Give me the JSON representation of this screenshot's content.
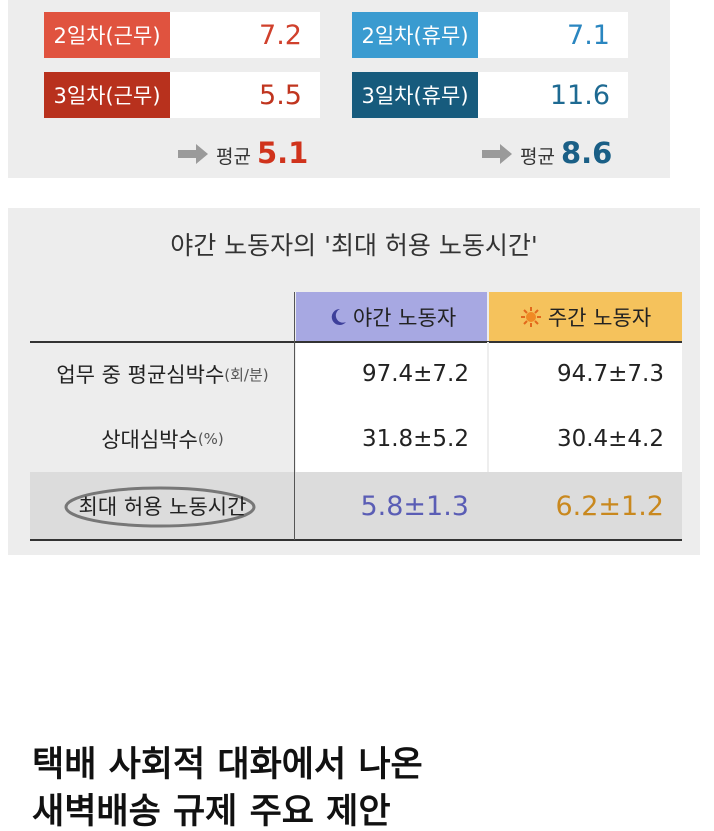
{
  "top_panel": {
    "work": {
      "items": [
        {
          "label": "2일차(근무)",
          "value": "7.2"
        },
        {
          "label": "3일차(근무)",
          "value": "5.5"
        }
      ],
      "average_label": "평균",
      "average": "5.1"
    },
    "rest": {
      "items": [
        {
          "label": "2일차(휴무)",
          "value": "7.1"
        },
        {
          "label": "3일차(휴무)",
          "value": "11.6"
        }
      ],
      "average_label": "평균",
      "average": "8.6"
    }
  },
  "table": {
    "title": "야간 노동자의 '최대 허용 노동시간'",
    "columns": [
      "야간 노동자",
      "주간 노동자"
    ],
    "rows": [
      {
        "label": "업무 중 평균심박수",
        "unit": "(회/분)",
        "values": [
          "97.4±7.2",
          "94.7±7.3"
        ]
      },
      {
        "label": "상대심박수",
        "unit": "(%)",
        "values": [
          "31.8±5.2",
          "30.4±4.2"
        ]
      },
      {
        "label": "최대 허용 노동시간",
        "values": [
          "5.8±1.3",
          "6.2±1.2"
        ]
      }
    ]
  },
  "headline": {
    "lines": [
      "택배 사회적 대화에서 나온",
      "새벽배송 규제 주요 제안"
    ]
  }
}
